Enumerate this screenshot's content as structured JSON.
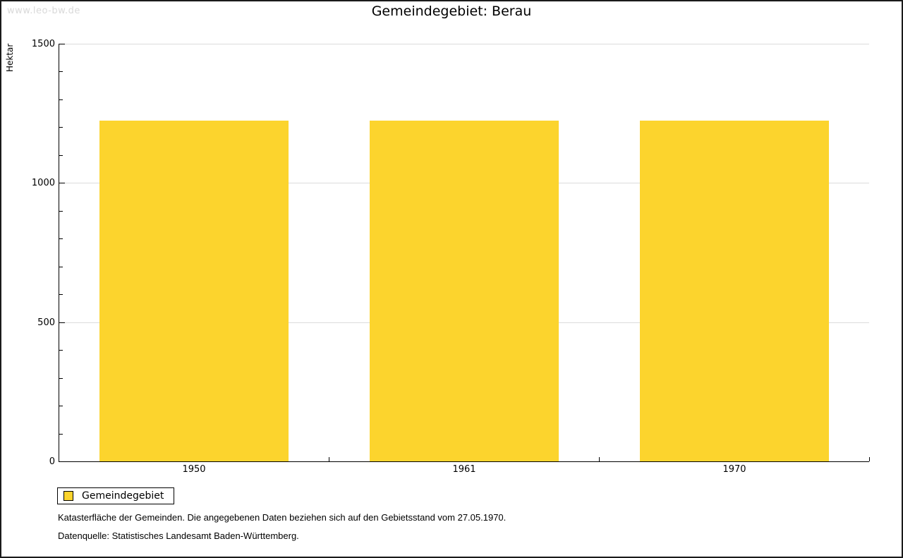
{
  "watermark": "www.leo-bw.de",
  "header": {
    "title": "Gemeindegebiet: Berau"
  },
  "chart_data": {
    "type": "bar",
    "title": "Gemeindegebiet: Berau",
    "categories": [
      "1950",
      "1961",
      "1970"
    ],
    "series": [
      {
        "name": "Gemeindegebiet",
        "values": [
          1225,
          1225,
          1225
        ]
      }
    ],
    "xlabel": "",
    "ylabel": "Hektar",
    "ylim": [
      0,
      1500
    ],
    "ytick_interval": 500,
    "yticks": [
      0,
      500,
      1000,
      1500
    ],
    "minor_ytick_interval": 100,
    "grid": true,
    "gridlines_at": [
      500,
      1000,
      1500
    ],
    "legend_position": "bottom-left",
    "bar_color": "#FCD42D"
  },
  "legend": {
    "label": "Gemeindegebiet",
    "swatch_color": "#FCD42D"
  },
  "footnotes": {
    "line1": "Katasterfläche der Gemeinden. Die angegebenen Daten beziehen sich auf den Gebietsstand vom 27.05.1970.",
    "line2": "Datenquelle: Statistisches Landesamt Baden-Württemberg."
  },
  "colors": {
    "bar": "#FCD42D",
    "gridline": "#dcdcdc",
    "axis": "#000000",
    "watermark": "#d9d9d9",
    "frame_border": "#1a1a1a",
    "background": "#ffffff"
  }
}
